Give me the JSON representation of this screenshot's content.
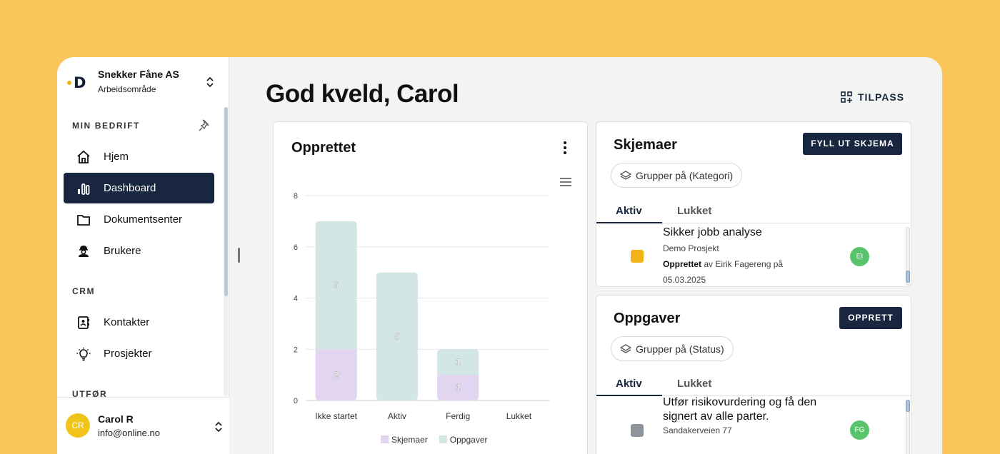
{
  "org": {
    "name": "Snekker Fåne AS",
    "workspace": "Arbeidsområde",
    "logo_letter": "D"
  },
  "sidebar": {
    "sections": [
      {
        "label": "MIN BEDRIFT"
      },
      {
        "label": "CRM"
      },
      {
        "label": "UTFØR"
      }
    ],
    "items": [
      {
        "label": "Hjem",
        "icon": "home-icon"
      },
      {
        "label": "Dashboard",
        "icon": "bar-chart-icon",
        "active": true
      },
      {
        "label": "Dokumentsenter",
        "icon": "folder-icon"
      },
      {
        "label": "Brukere",
        "icon": "worker-icon"
      },
      {
        "label": "Kontakter",
        "icon": "contact-card-icon"
      },
      {
        "label": "Prosjekter",
        "icon": "lightbulb-icon"
      }
    ]
  },
  "user": {
    "initials": "CR",
    "name": "Carol R",
    "email": "info@online.no"
  },
  "header": {
    "greeting": "God kveld, Carol",
    "customize_label": "TILPASS"
  },
  "chart_card": {
    "title": "Opprettet"
  },
  "chart_data": {
    "type": "bar",
    "stacked": true,
    "categories": [
      "Ikke startet",
      "Aktiv",
      "Ferdig",
      "Lukket"
    ],
    "series": [
      {
        "name": "Skjemaer",
        "values": [
          2,
          0,
          1,
          0
        ],
        "color": "#E1D5EF"
      },
      {
        "name": "Oppgaver",
        "values": [
          5,
          5,
          1,
          0
        ],
        "color": "#D2E6E6"
      }
    ],
    "ylim": [
      0,
      8
    ],
    "yticks": [
      0,
      2,
      4,
      6,
      8
    ],
    "grid": true,
    "legend": "bottom"
  },
  "forms_card": {
    "title": "Skjemaer",
    "button": "FYLL UT SKJEMA",
    "group_chip": "Grupper på (Kategori)",
    "tabs": [
      "Aktiv",
      "Lukket"
    ],
    "items": [
      {
        "title": "Sikker jobb analyse",
        "subtitle": "Demo Prosjekt",
        "meta_bold": "Opprettet",
        "meta_rest": " av Eirik Fagereng på",
        "date": "05.03.2025",
        "badge": "EI",
        "color": "#F2B319"
      }
    ]
  },
  "tasks_card": {
    "title": "Oppgaver",
    "button": "OPPRETT",
    "group_chip": "Grupper på (Status)",
    "tabs": [
      "Aktiv",
      "Lukket"
    ],
    "items": [
      {
        "title_line1": "Utfør risikovurdering og få den",
        "title_line2": "signert av alle parter.",
        "subtitle": "Sandakerveien 77",
        "badge": "FG",
        "color": "#8E949C"
      }
    ]
  }
}
